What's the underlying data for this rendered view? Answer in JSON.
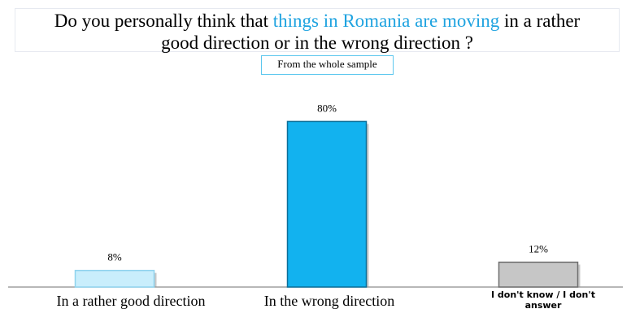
{
  "title": {
    "part1": "Do you personally think that ",
    "highlight": "things in Romania are moving",
    "part2": " in a rather",
    "line2": "good direction or in the wrong direction ?"
  },
  "subtitle": "From the whole sample",
  "colors": {
    "highlight": "#1fa3e0",
    "bar_good": "#c9eefc",
    "bar_wrong": "#12b2ef",
    "bar_dontknow": "#c6c6c6"
  },
  "chart_data": {
    "type": "bar",
    "categories": [
      "In a rather good direction",
      "In the wrong direction",
      "I don't know / I don't answer"
    ],
    "values": [
      8,
      80,
      12
    ],
    "data_labels": [
      "8%",
      "80%",
      "12%"
    ],
    "unit": "%",
    "ylim": [
      0,
      100
    ],
    "grid": false,
    "legend": "none"
  }
}
